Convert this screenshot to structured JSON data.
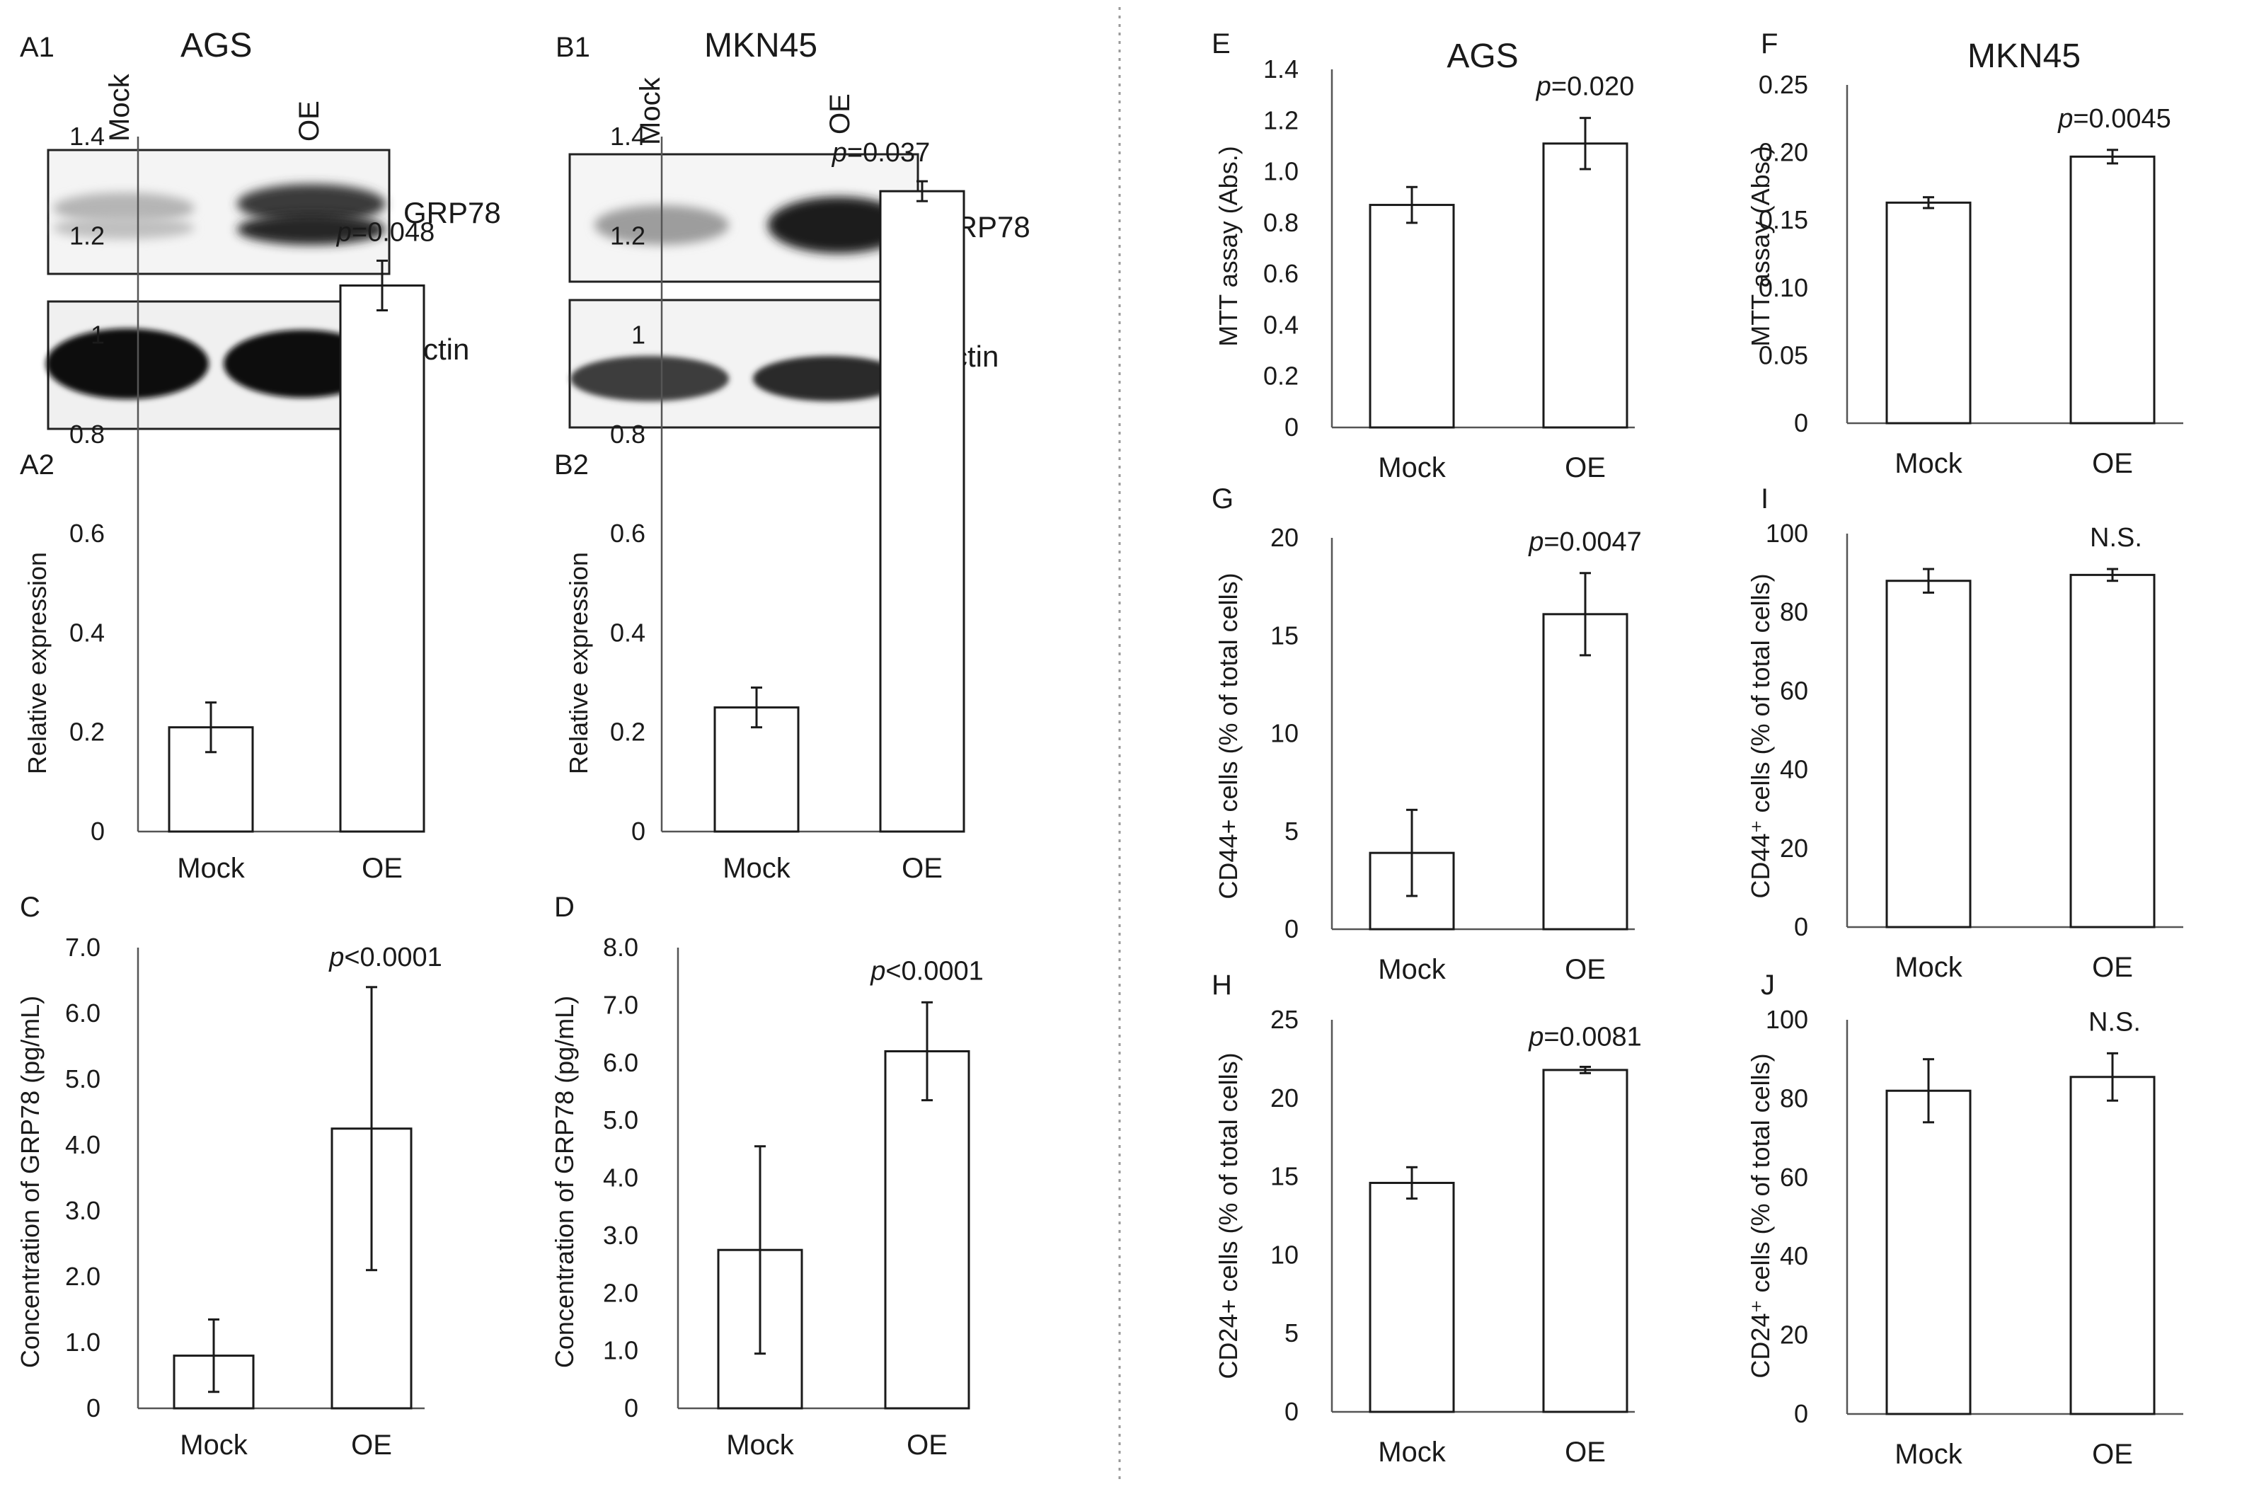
{
  "blots": [
    {
      "id": "A1",
      "title": "AGS",
      "lanes": [
        "Mock",
        "OE"
      ],
      "bands": [
        "GRP78",
        "Actin"
      ]
    },
    {
      "id": "B1",
      "title": "MKN45",
      "lanes": [
        "Mock",
        "OE"
      ],
      "bands": [
        "GRP78",
        "Actin"
      ]
    }
  ],
  "chart_data": [
    {
      "id": "A2",
      "type": "bar",
      "categories": [
        "Mock",
        "OE"
      ],
      "values": [
        0.21,
        1.1
      ],
      "errors": [
        0.05,
        0.05
      ],
      "ylim": [
        0,
        1.4
      ],
      "ytick_labels": [
        "0",
        "0.2",
        "0.4",
        "0.6",
        "0.8",
        "1",
        "1.2",
        "1.4"
      ],
      "ylabel": "Relative expression",
      "annotation": {
        "p": "p",
        "rest": "=0.048"
      },
      "grid": false
    },
    {
      "id": "B2",
      "type": "bar",
      "categories": [
        "Mock",
        "OE"
      ],
      "values": [
        0.25,
        1.29
      ],
      "errors": [
        0.04,
        0.02
      ],
      "ylim": [
        0,
        1.4
      ],
      "ytick_labels": [
        "0",
        "0.2",
        "0.4",
        "0.6",
        "0.8",
        "1",
        "1.2",
        "1.4"
      ],
      "ylabel": "Relative expression",
      "annotation": {
        "p": "p",
        "rest": "=0.037"
      },
      "grid": false
    },
    {
      "id": "C",
      "type": "bar",
      "categories": [
        "Mock",
        "OE"
      ],
      "values": [
        0.8,
        4.25
      ],
      "errors": [
        0.55,
        2.15
      ],
      "ylim": [
        0,
        7
      ],
      "ytick_labels": [
        "0",
        "1.0",
        "2.0",
        "3.0",
        "4.0",
        "5.0",
        "6.0",
        "7.0"
      ],
      "ylabel": "Concentration of GRP78 (pg/mL)",
      "annotation": {
        "p": "p",
        "rest": "<0.0001"
      },
      "grid": false
    },
    {
      "id": "D",
      "type": "bar",
      "categories": [
        "Mock",
        "OE"
      ],
      "values": [
        2.75,
        6.2
      ],
      "errors": [
        1.8,
        0.85
      ],
      "ylim": [
        0,
        8
      ],
      "ytick_labels": [
        "0",
        "1.0",
        "2.0",
        "3.0",
        "4.0",
        "5.0",
        "6.0",
        "7.0",
        "8.0"
      ],
      "ylabel": "Concentration of GRP78 (pg/mL)",
      "annotation": {
        "p": "p",
        "rest": "<0.0001"
      },
      "grid": false
    },
    {
      "id": "E",
      "type": "bar",
      "title": "AGS",
      "categories": [
        "Mock",
        "OE"
      ],
      "values": [
        0.87,
        1.11
      ],
      "errors": [
        0.07,
        0.1
      ],
      "ylim": [
        0,
        1.4
      ],
      "ytick_labels": [
        "0",
        "0.2",
        "0.4",
        "0.6",
        "0.8",
        "1.0",
        "1.2",
        "1.4"
      ],
      "ylabel": "MTT assay (Abs.)",
      "annotation": {
        "p": "p",
        "rest": "=0.020"
      },
      "grid": false
    },
    {
      "id": "F",
      "type": "bar",
      "title": "MKN45",
      "categories": [
        "Mock",
        "OE"
      ],
      "values": [
        0.163,
        0.197
      ],
      "errors": [
        0.004,
        0.005
      ],
      "ylim": [
        0,
        0.25
      ],
      "ytick_labels": [
        "0",
        "0.05",
        "0.10",
        "0.15",
        "0.20",
        "0.25"
      ],
      "ylabel": "MTT assay (Abs.)",
      "annotation": {
        "p": "p",
        "rest": "=0.0045"
      },
      "grid": false
    },
    {
      "id": "G",
      "type": "bar",
      "categories": [
        "Mock",
        "OE"
      ],
      "values": [
        3.9,
        16.1
      ],
      "errors": [
        2.2,
        2.1
      ],
      "ylim": [
        0,
        20
      ],
      "ytick_labels": [
        "0",
        "5",
        "10",
        "15",
        "20"
      ],
      "ylabel": "CD44+ cells (% of total cells)",
      "annotation": {
        "p": "p",
        "rest": "=0.0047"
      },
      "grid": false
    },
    {
      "id": "I",
      "type": "bar",
      "categories": [
        "Mock",
        "OE"
      ],
      "values": [
        88,
        89.5
      ],
      "errors": [
        3,
        1.5
      ],
      "ylim": [
        0,
        100
      ],
      "ytick_labels": [
        "0",
        "20",
        "40",
        "60",
        "80",
        "100"
      ],
      "ylabel": "CD44⁺ cells (% of total cells)",
      "annotation": {
        "p": "",
        "rest": "N.S."
      },
      "grid": false
    },
    {
      "id": "H",
      "type": "bar",
      "categories": [
        "Mock",
        "OE"
      ],
      "values": [
        14.6,
        21.8
      ],
      "errors": [
        1.0,
        0.2
      ],
      "ylim": [
        0,
        25
      ],
      "ytick_labels": [
        "0",
        "5",
        "10",
        "15",
        "20",
        "25"
      ],
      "ylabel": "CD24+ cells (% of total cells)",
      "annotation": {
        "p": "p",
        "rest": "=0.0081"
      },
      "grid": false
    },
    {
      "id": "J",
      "type": "bar",
      "categories": [
        "Mock",
        "OE"
      ],
      "values": [
        82,
        85.5
      ],
      "errors": [
        8,
        6
      ],
      "ylim": [
        0,
        100
      ],
      "ytick_labels": [
        "0",
        "20",
        "40",
        "60",
        "80",
        "100"
      ],
      "ylabel": "CD24⁺ cells (% of total cells)",
      "annotation": {
        "p": "",
        "rest": "N.S."
      },
      "grid": false
    }
  ]
}
